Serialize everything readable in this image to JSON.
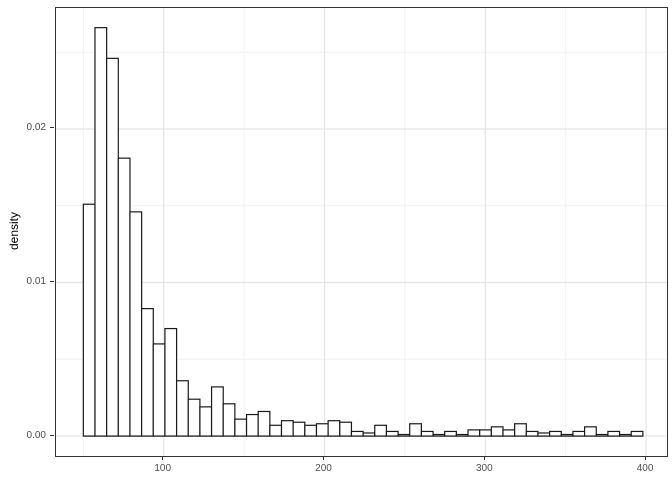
{
  "chart_data": {
    "type": "bar",
    "subtype": "histogram",
    "title": "",
    "xlabel": "",
    "ylabel": "density",
    "x_tick_labels": [
      "100",
      "200",
      "300",
      "400"
    ],
    "x_tick_values": [
      100,
      200,
      300,
      400
    ],
    "y_tick_labels": [
      "0.00",
      "0.01",
      "0.02"
    ],
    "y_tick_values": [
      0,
      0.01,
      0.02
    ],
    "x_minor_gridlines": [
      50,
      150,
      250,
      350
    ],
    "y_minor_gridlines": [
      0.005,
      0.015,
      0.025
    ],
    "xlim": [
      33,
      413
    ],
    "ylim": [
      -0.0013,
      0.02788
    ],
    "grid": "on",
    "legend": "none",
    "bin_start": 50,
    "binwidth": 7.25,
    "densities": [
      0.0151,
      0.0266,
      0.0246,
      0.0181,
      0.0146,
      0.0083,
      0.006,
      0.007,
      0.0036,
      0.0024,
      0.0019,
      0.0032,
      0.0021,
      0.0011,
      0.0014,
      0.0016,
      0.0007,
      0.001,
      0.0009,
      0.0007,
      0.0008,
      0.001,
      0.0009,
      0.0003,
      0.0002,
      0.0007,
      0.0003,
      0.0001,
      0.0008,
      0.0003,
      0.0001,
      0.0003,
      0.0001,
      0.0004,
      0.0004,
      0.0006,
      0.0004,
      0.0008,
      0.0003,
      0.0002,
      0.0003,
      0.0001,
      0.0003,
      0.0006,
      0.0001,
      0.0003,
      0.0001,
      0.0003
    ],
    "colors": {
      "background": "#ffffff",
      "panel_background": "#ffffff",
      "panel_border": "#333333",
      "bar_fill": "#ffffff",
      "bar_stroke": "#1a1a1a",
      "grid_major": "#e4e4e4",
      "grid_minor": "#f1f1f1",
      "tick_mark": "#333333",
      "tick_label": "#4d4d4d",
      "axis_title": "#000000"
    }
  }
}
